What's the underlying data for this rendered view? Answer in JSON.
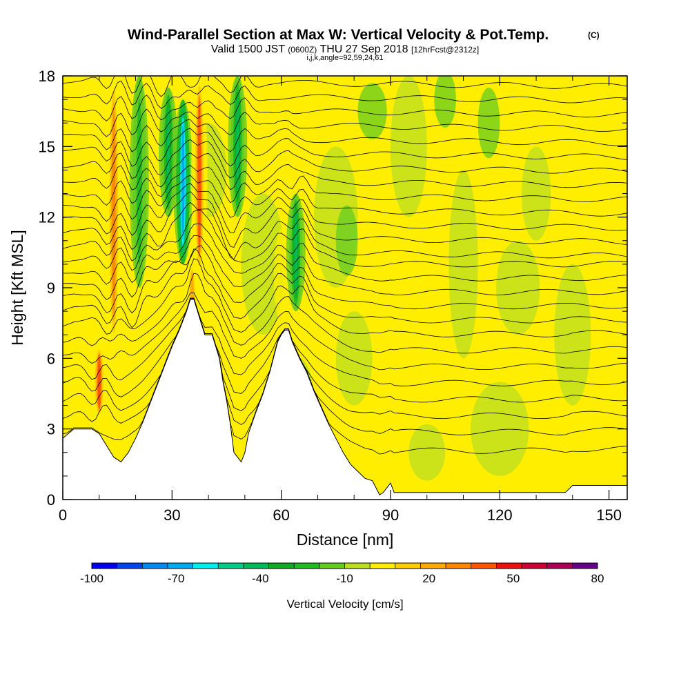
{
  "header": {
    "title": "Wind-Parallel Section at Max W: Vertical Velocity & Pot.Temp.",
    "copyright": "(C)",
    "valid_prefix": "Valid 1500 JST",
    "valid_utc": "(0600Z)",
    "valid_date": "THU 27 Sep 2018",
    "forecast": "[12hrFcst@2312z]",
    "indices": "i,j,k,angle=92,59,24,61"
  },
  "colorbar": {
    "label": "Vertical Velocity [cm/s]",
    "min": -100,
    "max": 80,
    "step": 10,
    "tick_labels": [
      "-100",
      "-70",
      "-40",
      "-10",
      "20",
      "50",
      "80"
    ],
    "colors": [
      "#0000ee",
      "#0044ee",
      "#0088ee",
      "#00aaee",
      "#00eeee",
      "#00cc88",
      "#00bb55",
      "#11aa22",
      "#22bb22",
      "#66cc22",
      "#bbdd22",
      "#ffee00",
      "#ffcc00",
      "#ffaa00",
      "#ff8800",
      "#ff5500",
      "#ee1111",
      "#cc0033",
      "#aa0055",
      "#660088"
    ]
  },
  "chart_data": {
    "type": "heatmap",
    "title": "Wind-Parallel Section at Max W: Vertical Velocity & Pot.Temp.",
    "xlabel": "Distance [nm]",
    "ylabel": "Height [Kft MSL]",
    "xlim": [
      0,
      155
    ],
    "ylim": [
      0,
      18
    ],
    "x_ticks": [
      0,
      30,
      60,
      90,
      120,
      150
    ],
    "y_ticks": [
      0,
      3,
      6,
      9,
      12,
      15,
      18
    ],
    "fill_variable": "Vertical Velocity [cm/s]",
    "contour_variable": "Pot.Temp.",
    "terrain": [
      [
        0,
        2.6
      ],
      [
        3,
        3.0
      ],
      [
        8,
        3.0
      ],
      [
        10,
        2.8
      ],
      [
        12,
        2.3
      ],
      [
        14,
        1.8
      ],
      [
        16,
        1.6
      ],
      [
        18,
        2.0
      ],
      [
        20,
        2.6
      ],
      [
        22,
        3.3
      ],
      [
        24,
        4.1
      ],
      [
        26,
        4.9
      ],
      [
        28,
        5.7
      ],
      [
        30,
        6.5
      ],
      [
        32,
        7.2
      ],
      [
        34,
        8.0
      ],
      [
        35,
        8.5
      ],
      [
        36,
        8.5
      ],
      [
        37,
        8.0
      ],
      [
        38,
        7.5
      ],
      [
        39,
        7.0
      ],
      [
        41,
        7.0
      ],
      [
        42,
        6.5
      ],
      [
        43,
        6.0
      ],
      [
        44,
        5.0
      ],
      [
        45,
        4.2
      ],
      [
        46,
        3.2
      ],
      [
        47,
        2.0
      ],
      [
        48,
        1.8
      ],
      [
        49,
        1.6
      ],
      [
        50,
        2.0
      ],
      [
        51,
        2.8
      ],
      [
        53,
        3.7
      ],
      [
        55,
        4.5
      ],
      [
        56,
        5.0
      ],
      [
        57,
        5.5
      ],
      [
        58,
        6.1
      ],
      [
        59,
        6.7
      ],
      [
        60,
        7.0
      ],
      [
        61,
        7.2
      ],
      [
        62,
        7.2
      ],
      [
        63,
        6.7
      ],
      [
        65,
        6.0
      ],
      [
        67,
        5.4
      ],
      [
        69,
        4.6
      ],
      [
        71,
        3.9
      ],
      [
        73,
        3.2
      ],
      [
        75,
        2.6
      ],
      [
        77,
        2.0
      ],
      [
        79,
        1.5
      ],
      [
        81,
        1.2
      ],
      [
        83,
        0.9
      ],
      [
        85,
        0.8
      ],
      [
        86,
        0.5
      ],
      [
        87,
        0.2
      ],
      [
        88,
        0.3
      ],
      [
        89,
        0.5
      ],
      [
        90,
        0.7
      ],
      [
        91,
        0.3
      ],
      [
        93,
        0.3
      ],
      [
        138,
        0.3
      ],
      [
        140,
        0.6
      ],
      [
        155,
        0.6
      ]
    ],
    "theta_contours_at_x": [
      2.0,
      2.8,
      3.5,
      4.2,
      4.9,
      5.6,
      6.3,
      7.0,
      7.6,
      8.2,
      8.8,
      9.4,
      10.0,
      10.6,
      11.2,
      11.8,
      12.4,
      13.0,
      13.6,
      14.2,
      14.8,
      15.4,
      16.0,
      16.6,
      17.2,
      17.8
    ],
    "updraft_cores": [
      {
        "x": 10,
        "y_bottom": 3.5,
        "y_top": 6.5,
        "w_max": 50
      },
      {
        "x": 14,
        "y_bottom": 6.5,
        "y_top": 18,
        "w_max": 40
      },
      {
        "x": 37.5,
        "y_bottom": 9.5,
        "y_top": 18,
        "w_max": 50
      },
      {
        "x": 35.5,
        "y_bottom": 7.5,
        "y_top": 10,
        "w_max": 30
      }
    ],
    "downdraft_cores": [
      {
        "x": 33,
        "y_bottom": 10,
        "y_top": 17,
        "w_min": -70
      },
      {
        "x": 29,
        "y_bottom": 12,
        "y_top": 17.5,
        "w_min": -40
      },
      {
        "x": 48,
        "y_bottom": 12,
        "y_top": 18,
        "w_min": -40
      },
      {
        "x": 64,
        "y_bottom": 8,
        "y_top": 13,
        "w_min": -40
      },
      {
        "x": 21,
        "y_bottom": 9,
        "y_top": 18,
        "w_min": -20
      }
    ]
  }
}
